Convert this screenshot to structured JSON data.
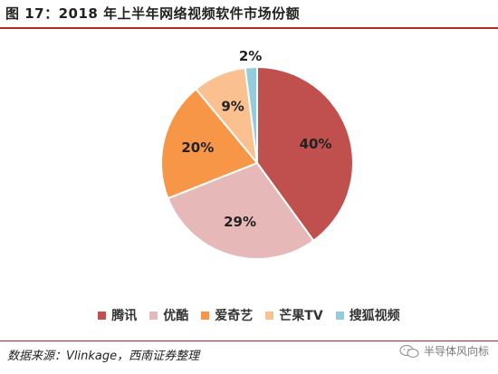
{
  "figure": {
    "title": "图 17：2018 年上半年网络视频软件市场份额",
    "source": "数据来源：Vlinkage，西南证券整理",
    "watermark": "半导体风向标"
  },
  "chart_data": {
    "type": "pie",
    "title": "",
    "categories": [
      "腾讯",
      "优酷",
      "爱奇艺",
      "芒果TV",
      "搜狐视频"
    ],
    "values": [
      40,
      29,
      20,
      9,
      2
    ],
    "value_labels": [
      "40%",
      "29%",
      "20%",
      "9%",
      "2%"
    ],
    "colors": [
      "#c0504d",
      "#e6b9b8",
      "#f79646",
      "#fac090",
      "#93cddd"
    ],
    "legend_position": "bottom"
  }
}
